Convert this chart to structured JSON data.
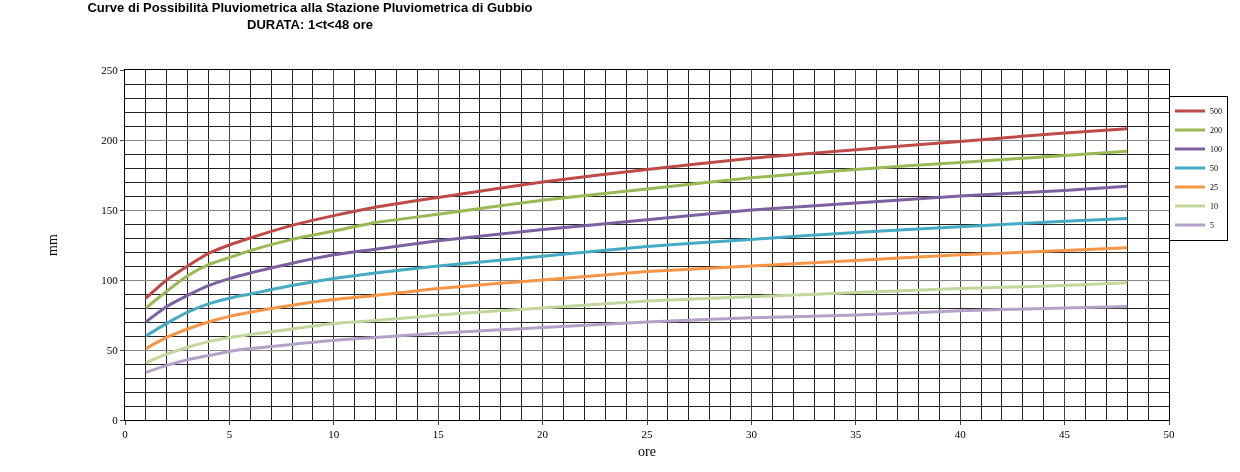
{
  "chart_data": {
    "type": "line",
    "title": "Curve di Possibilità Pluviometrica alla Stazione Pluviometrica di Gubbio\nDURATA: 1<t<48 ore",
    "xlabel": "ore",
    "ylabel": "mm",
    "x": [
      1,
      2,
      3,
      4,
      5,
      6,
      8,
      10,
      12,
      15,
      20,
      25,
      30,
      35,
      40,
      45,
      48
    ],
    "series": [
      {
        "name": "500",
        "color": "#be4b48",
        "values": [
          87,
          100,
          110,
          119,
          125,
          130,
          139,
          146,
          152,
          159,
          170,
          179,
          187,
          193,
          199,
          205,
          208
        ]
      },
      {
        "name": "200",
        "color": "#98b954",
        "values": [
          80,
          92,
          103,
          111,
          116,
          121,
          129,
          135,
          141,
          147,
          157,
          165,
          173,
          179,
          184,
          189,
          192
        ]
      },
      {
        "name": "100",
        "color": "#7d60a0",
        "values": [
          70,
          81,
          89,
          96,
          101,
          105,
          112,
          118,
          122,
          128,
          136,
          143,
          150,
          155,
          160,
          164,
          167
        ]
      },
      {
        "name": "50",
        "color": "#46aac5",
        "values": [
          60,
          69,
          77,
          83,
          87,
          90,
          96,
          101,
          105,
          110,
          117,
          124,
          129,
          134,
          138,
          142,
          144
        ]
      },
      {
        "name": "25",
        "color": "#f69546",
        "values": [
          51,
          59,
          65,
          70,
          74,
          77,
          82,
          86,
          89,
          94,
          100,
          106,
          110,
          114,
          118,
          121,
          123
        ]
      },
      {
        "name": "10",
        "color": "#c3d69b",
        "values": [
          41,
          47,
          52,
          56,
          59,
          61,
          65,
          69,
          71,
          75,
          80,
          85,
          88,
          91,
          94,
          96,
          98
        ]
      },
      {
        "name": "5",
        "color": "#b3a2c7",
        "values": [
          34,
          39,
          43,
          46,
          49,
          51,
          54,
          57,
          59,
          62,
          66,
          70,
          73,
          75,
          78,
          80,
          81
        ]
      }
    ],
    "xlim": [
      0,
      50
    ],
    "xticks": [
      0,
      5,
      10,
      15,
      20,
      25,
      30,
      35,
      40,
      45,
      50
    ],
    "ylim": [
      0,
      250
    ],
    "yticks": [
      0,
      50,
      100,
      150,
      200,
      250
    ],
    "grid": true,
    "legend": "right",
    "marker": "none",
    "line_style": "solid"
  }
}
